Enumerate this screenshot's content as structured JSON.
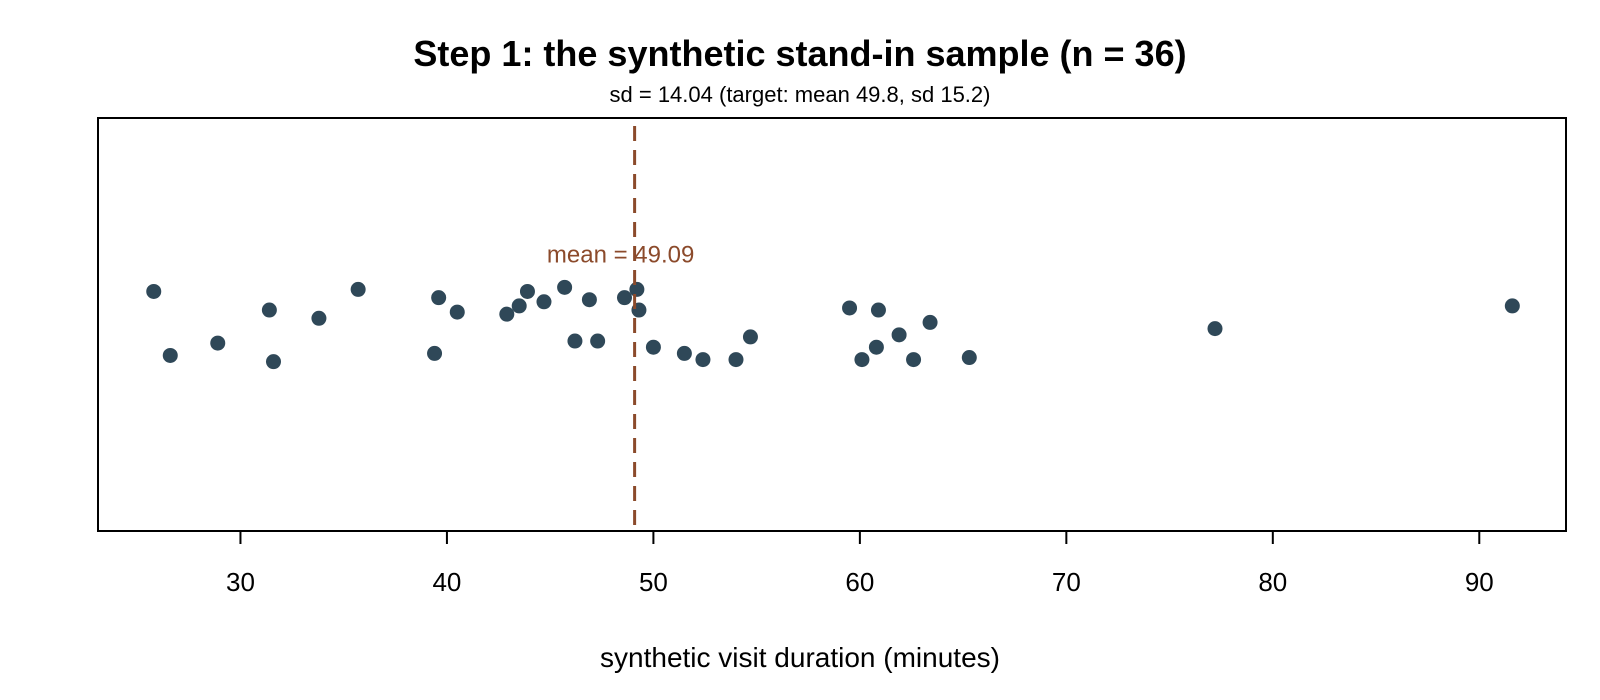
{
  "chart_data": {
    "type": "scatter",
    "title": "Step 1: the synthetic stand-in sample (n = 36)",
    "subtitle": "sd = 14.04 (target: mean 49.8, sd 15.2)",
    "xlabel": "synthetic visit duration (minutes)",
    "ylabel": "",
    "xlim": [
      23.1,
      94.2
    ],
    "ylim": [
      -1,
      1
    ],
    "xticks": [
      30,
      40,
      50,
      60,
      70,
      80,
      90
    ],
    "grid": false,
    "legend": "none",
    "point_color": "#2f4858",
    "mean_line": {
      "value": 49.09,
      "label": "mean = 49.09",
      "color": "#8b4a2b",
      "style": "dashed"
    },
    "points": [
      {
        "x": 25.8,
        "y": 0.16
      },
      {
        "x": 26.6,
        "y": -0.15
      },
      {
        "x": 28.9,
        "y": -0.09
      },
      {
        "x": 31.4,
        "y": 0.07
      },
      {
        "x": 31.6,
        "y": -0.18
      },
      {
        "x": 33.8,
        "y": 0.03
      },
      {
        "x": 35.7,
        "y": 0.17
      },
      {
        "x": 39.4,
        "y": -0.14
      },
      {
        "x": 39.6,
        "y": 0.13
      },
      {
        "x": 40.5,
        "y": 0.06
      },
      {
        "x": 42.9,
        "y": 0.05
      },
      {
        "x": 43.5,
        "y": 0.09
      },
      {
        "x": 43.9,
        "y": 0.16
      },
      {
        "x": 44.7,
        "y": 0.11
      },
      {
        "x": 45.7,
        "y": 0.18
      },
      {
        "x": 46.2,
        "y": -0.08
      },
      {
        "x": 46.9,
        "y": 0.12
      },
      {
        "x": 47.3,
        "y": -0.08
      },
      {
        "x": 48.6,
        "y": 0.13
      },
      {
        "x": 49.2,
        "y": 0.17
      },
      {
        "x": 49.3,
        "y": 0.07
      },
      {
        "x": 50.0,
        "y": -0.11
      },
      {
        "x": 51.5,
        "y": -0.14
      },
      {
        "x": 52.4,
        "y": -0.17
      },
      {
        "x": 54.0,
        "y": -0.17
      },
      {
        "x": 54.7,
        "y": -0.06
      },
      {
        "x": 59.5,
        "y": 0.08
      },
      {
        "x": 60.1,
        "y": -0.17
      },
      {
        "x": 60.8,
        "y": -0.11
      },
      {
        "x": 60.9,
        "y": 0.07
      },
      {
        "x": 61.9,
        "y": -0.05
      },
      {
        "x": 62.6,
        "y": -0.17
      },
      {
        "x": 63.4,
        "y": 0.01
      },
      {
        "x": 65.3,
        "y": -0.16
      },
      {
        "x": 77.2,
        "y": -0.02
      },
      {
        "x": 91.6,
        "y": 0.09
      }
    ]
  }
}
